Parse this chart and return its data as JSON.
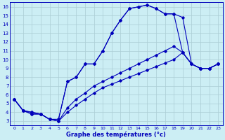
{
  "xlabel": "Graphe des températures (°c)",
  "xlim": [
    -0.5,
    23.5
  ],
  "ylim": [
    2.5,
    16.5
  ],
  "xticks": [
    0,
    1,
    2,
    3,
    4,
    5,
    6,
    7,
    8,
    9,
    10,
    11,
    12,
    13,
    14,
    15,
    16,
    17,
    18,
    19,
    20,
    21,
    22,
    23
  ],
  "yticks": [
    3,
    4,
    5,
    6,
    7,
    8,
    9,
    10,
    11,
    12,
    13,
    14,
    15,
    16
  ],
  "background_color": "#cceef4",
  "line_color": "#0000bb",
  "grid_color": "#aaccd4",
  "lines": [
    {
      "x": [
        0,
        1,
        2,
        3,
        4,
        5,
        6,
        7,
        8,
        9,
        10,
        11,
        12,
        13,
        14,
        15,
        16,
        17,
        18,
        19,
        20,
        21,
        22,
        23
      ],
      "y": [
        5.5,
        4.2,
        4.0,
        3.8,
        3.2,
        3.2,
        7.5,
        8.0,
        9.5,
        9.5,
        11.0,
        13.0,
        14.5,
        15.8,
        16.0,
        16.2,
        15.8,
        15.2,
        15.2,
        14.8,
        9.5,
        9.0,
        9.0,
        9.5
      ]
    },
    {
      "x": [
        0,
        1,
        2,
        3,
        4,
        5,
        6,
        7,
        8,
        9,
        10,
        11,
        12,
        13,
        14,
        15,
        16,
        17,
        18,
        19,
        20,
        21,
        22,
        23
      ],
      "y": [
        5.5,
        4.2,
        4.0,
        3.8,
        3.2,
        3.2,
        7.5,
        8.0,
        9.5,
        9.5,
        11.0,
        13.0,
        14.5,
        15.8,
        16.0,
        16.2,
        15.8,
        15.2,
        15.2,
        10.8,
        9.5,
        9.0,
        9.0,
        9.5
      ]
    },
    {
      "x": [
        0,
        1,
        2,
        3,
        4,
        5,
        6,
        7,
        8,
        9,
        10,
        11,
        12,
        13,
        14,
        15,
        16,
        17,
        18,
        19,
        20,
        21,
        22,
        23
      ],
      "y": [
        5.5,
        4.2,
        3.8,
        3.8,
        3.2,
        3.0,
        4.5,
        5.5,
        6.2,
        7.0,
        7.5,
        8.0,
        8.5,
        9.0,
        9.5,
        10.0,
        10.5,
        11.0,
        11.5,
        10.8,
        9.5,
        9.0,
        9.0,
        9.5
      ]
    },
    {
      "x": [
        0,
        1,
        2,
        3,
        4,
        5,
        6,
        7,
        8,
        9,
        10,
        11,
        12,
        13,
        14,
        15,
        16,
        17,
        18,
        19,
        20,
        21,
        22,
        23
      ],
      "y": [
        5.5,
        4.2,
        3.8,
        3.8,
        3.2,
        3.0,
        4.0,
        4.8,
        5.5,
        6.2,
        6.8,
        7.2,
        7.6,
        8.0,
        8.4,
        8.8,
        9.2,
        9.6,
        10.0,
        10.8,
        9.5,
        9.0,
        9.0,
        9.5
      ]
    }
  ]
}
